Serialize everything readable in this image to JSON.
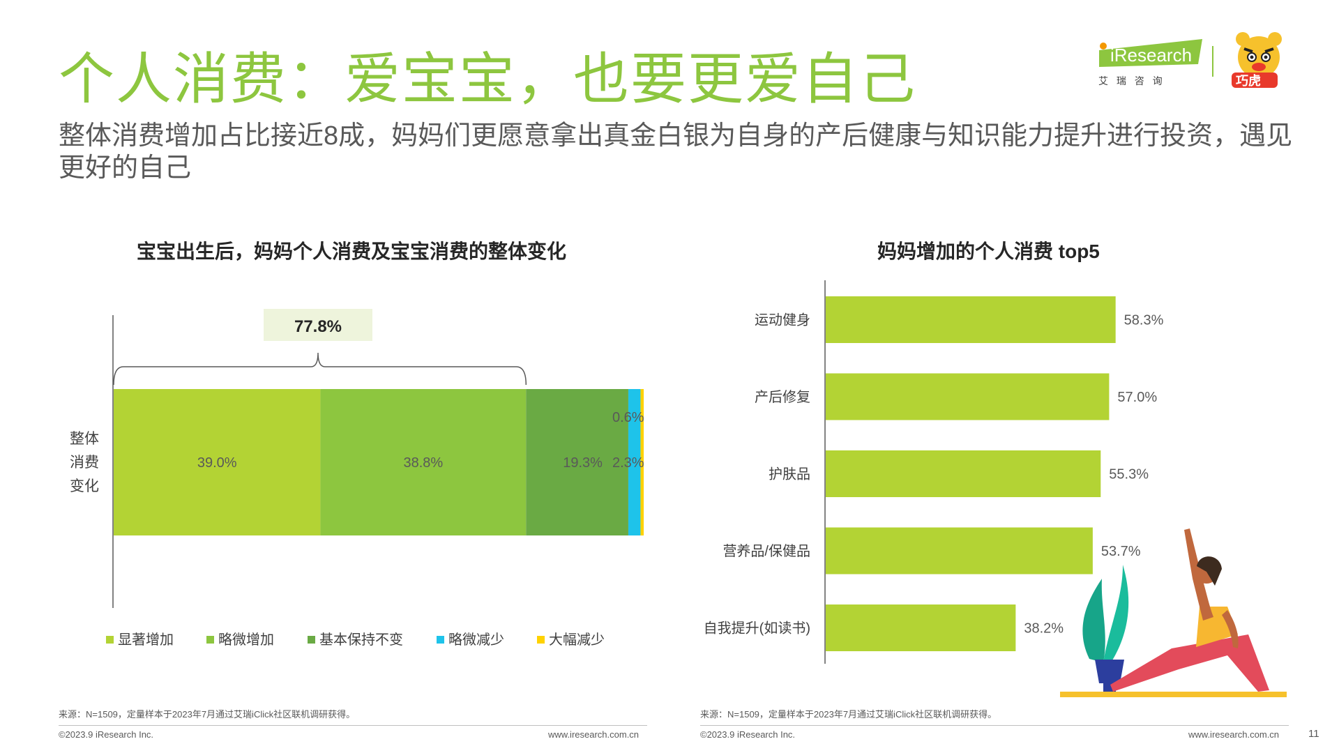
{
  "header": {
    "title": "个人消费：爱宝宝，也要更爱自己",
    "subtitle": "整体消费增加占比接近8成，妈妈们更愿意拿出真金白银为自身的产后健康与知识能力提升进行投资，遇见更好的自己"
  },
  "logo": {
    "brand": "iResearch",
    "tagline": "艾 瑞 咨 询",
    "partner": "巧虎"
  },
  "colors": {
    "title_green": "#8dc63f",
    "bar_lime": "#b3d334",
    "bar_green": "#8dc63f",
    "bar_dark": "#6aaa44",
    "bar_cyan": "#1ec3ea",
    "bar_yellow": "#ffd200"
  },
  "chart_data": [
    {
      "type": "bar",
      "orientation": "horizontal-stacked",
      "title": "宝宝出生后，妈妈个人消费及宝宝消费的整体变化",
      "categories": [
        "整体消费变化"
      ],
      "category_label_lines": [
        "整体",
        "消费",
        "变化"
      ],
      "series": [
        {
          "name": "显著增加",
          "values": [
            39.0
          ],
          "label": "39.0%",
          "color": "#b3d334"
        },
        {
          "name": "略微增加",
          "values": [
            38.8
          ],
          "label": "38.8%",
          "color": "#8dc63f"
        },
        {
          "name": "基本保持不变",
          "values": [
            19.3
          ],
          "label": "19.3%",
          "color": "#6aaa44"
        },
        {
          "name": "略微减少",
          "values": [
            2.3
          ],
          "label": "2.3%",
          "color": "#1ec3ea"
        },
        {
          "name": "大幅减少",
          "values": [
            0.6
          ],
          "label": "0.6%",
          "color": "#ffd200"
        }
      ],
      "annotation": {
        "text": "77.8%",
        "spans": [
          "显著增加",
          "略微增加"
        ]
      },
      "legend": "bottom",
      "xlim": [
        0,
        100
      ]
    },
    {
      "type": "bar",
      "orientation": "horizontal",
      "title": "妈妈增加的个人消费 top5",
      "categories": [
        "运动健身",
        "产后修复",
        "护肤品",
        "营养品/保健品",
        "自我提升(如读书)"
      ],
      "values": [
        58.3,
        57.0,
        55.3,
        53.7,
        38.2
      ],
      "labels": [
        "58.3%",
        "57.0%",
        "55.3%",
        "53.7%",
        "38.2%"
      ],
      "color": "#b3d334",
      "xlim": [
        0,
        100
      ]
    }
  ],
  "footer": {
    "left": {
      "source": "来源：N=1509，定量样本于2023年7月通过艾瑞iClick社区联机调研获得。",
      "copyright": "©2023.9 iResearch Inc.",
      "url": "www.iresearch.com.cn"
    },
    "right": {
      "source": "来源：N=1509，定量样本于2023年7月通过艾瑞iClick社区联机调研获得。",
      "copyright": "©2023.9 iResearch Inc.",
      "url": "www.iresearch.com.cn"
    },
    "page_number": "11"
  }
}
